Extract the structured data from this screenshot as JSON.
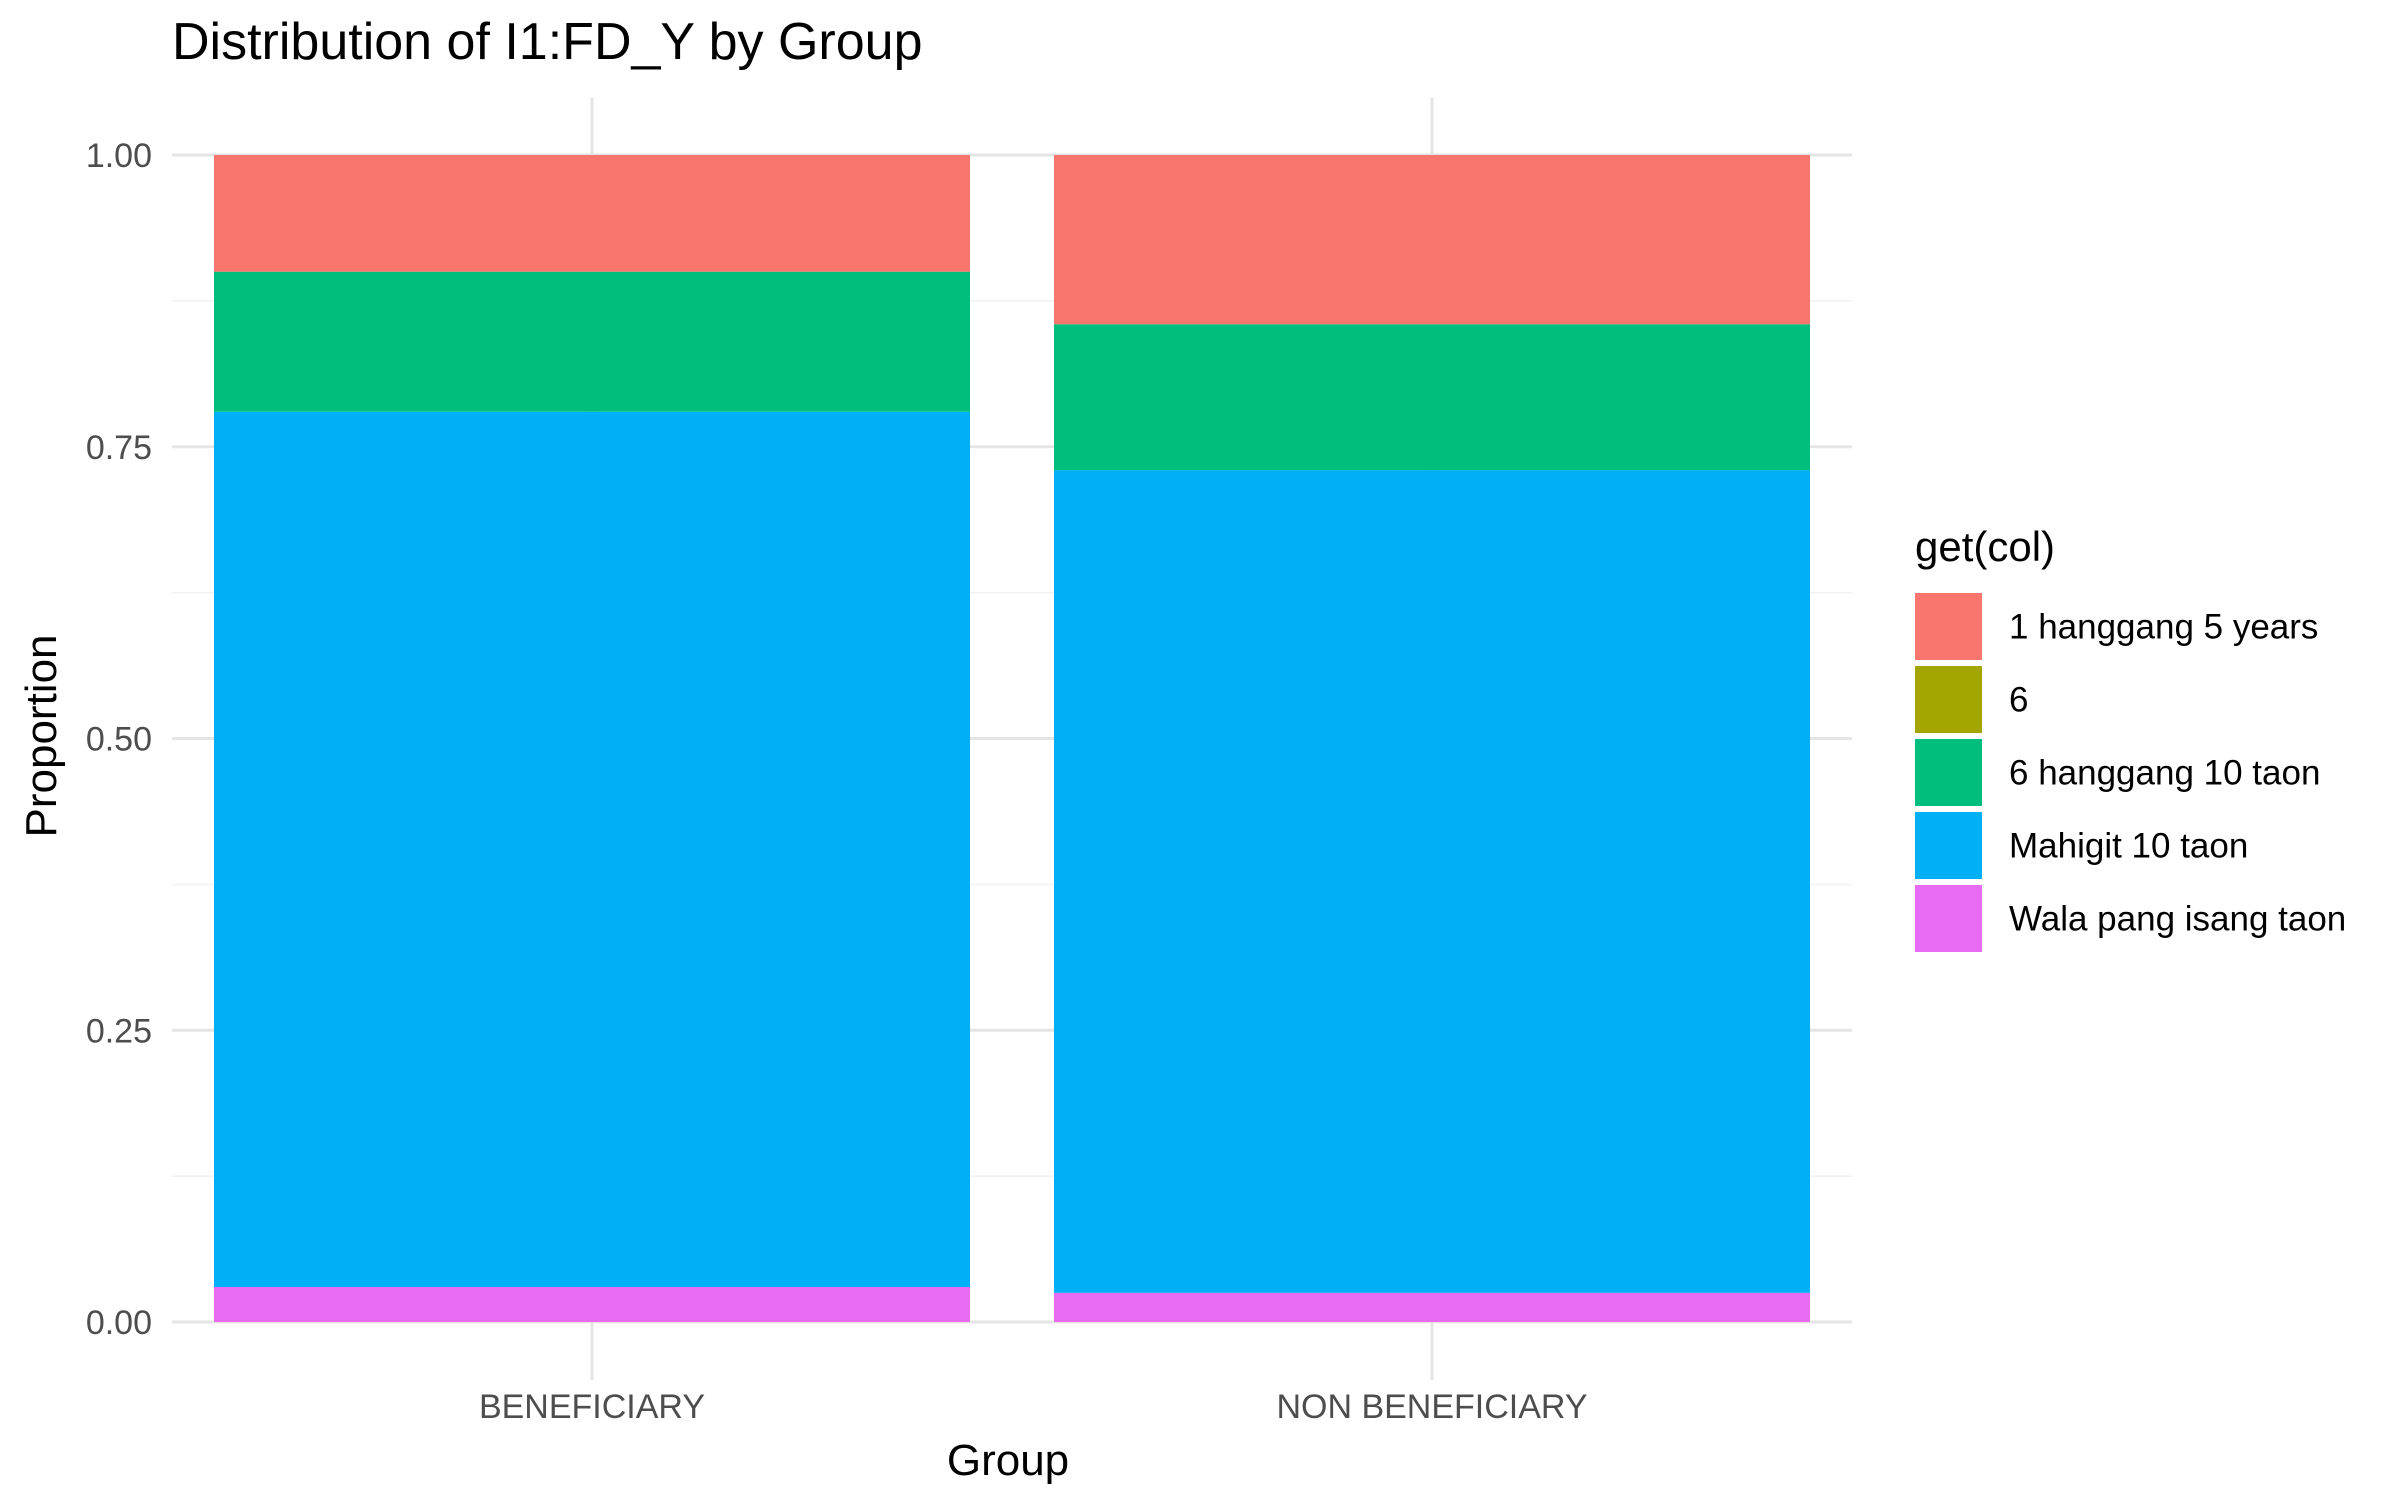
{
  "chart_data": {
    "type": "bar",
    "stacked": true,
    "title": "Distribution of I1:FD_Y by Group",
    "xlabel": "Group",
    "ylabel": "Proportion",
    "ylim": [
      0,
      1
    ],
    "yticks": [
      "0.00",
      "0.25",
      "0.50",
      "0.75",
      "1.00"
    ],
    "ytick_values": [
      0,
      0.25,
      0.5,
      0.75,
      1.0
    ],
    "categories": [
      "BENEFICIARY",
      "NON BENEFICIARY"
    ],
    "grid": true,
    "legend_title": "get(col)",
    "legend_position": "right",
    "series": [
      {
        "name": "Wala pang isang taon",
        "color": "#E76BF3",
        "values": [
          0.03,
          0.025
        ]
      },
      {
        "name": "Mahigit 10 taon",
        "color": "#00B0F6",
        "values": [
          0.75,
          0.705
        ]
      },
      {
        "name": "6 hanggang 10 taon",
        "color": "#00BF7D",
        "values": [
          0.12,
          0.125
        ]
      },
      {
        "name": "6",
        "color": "#A3A500",
        "values": [
          0.0,
          0.0
        ]
      },
      {
        "name": "1 hanggang 5 years",
        "color": "#F8766D",
        "values": [
          0.1,
          0.145
        ]
      }
    ],
    "legend_order": [
      "1 hanggang 5 years",
      "6",
      "6 hanggang 10 taon",
      "Mahigit 10 taon",
      "Wala pang isang taon"
    ]
  }
}
